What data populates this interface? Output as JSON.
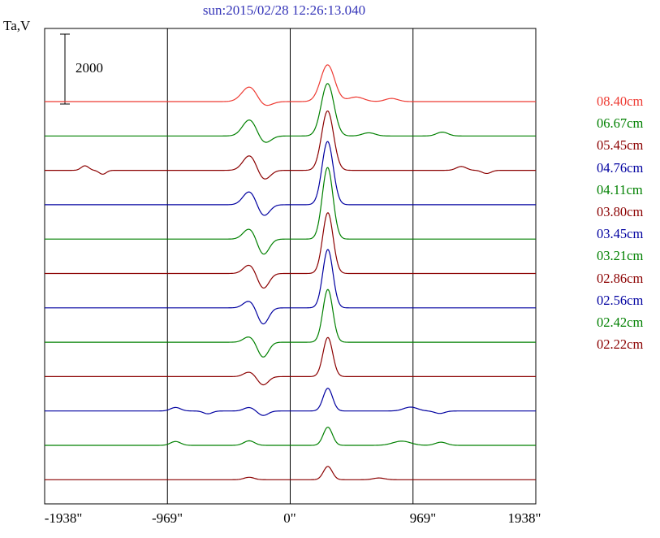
{
  "title": "sun:2015/02/28 12:26:13.040",
  "y_axis_label": "Ta,V",
  "scale_bar": {
    "label": "2000",
    "value": 2000
  },
  "x_ticks": [
    "-1938\"",
    "-969\"",
    "0\"",
    "969\"",
    "1938\""
  ],
  "x_tick_values": [
    -1938,
    -969,
    0,
    969,
    1938
  ],
  "colors": {
    "title_blue": "#3434b8",
    "axis_black": "#000000",
    "trace_red": "#ee3b33",
    "trace_green": "#008000",
    "trace_darkred": "#8b0000",
    "trace_blue": "#0000a0"
  },
  "chart_data": {
    "type": "line",
    "title": "sun:2015/02/28 12:26:13.040",
    "ylabel": "Ta,V",
    "x_unit": "arcsec",
    "xlim": [
      -1938,
      1938
    ],
    "gridlines_x": [
      -969,
      0,
      969
    ],
    "grid": true,
    "legend_position": "right-outside",
    "scale_bar_value": 2000,
    "note": "Stacked solar drift-scan antenna-temperature profiles per wavelength; features are gaussian components {x arcsec, amp in V (scale bar = 2000), w sigma arcsec}",
    "series": [
      {
        "label": "08.40cm",
        "color": "#ee3b33",
        "features": [
          {
            "x": -320,
            "amp": 430,
            "w": 60
          },
          {
            "x": -205,
            "amp": -150,
            "w": 55
          },
          {
            "x": 295,
            "amp": 1050,
            "w": 55
          },
          {
            "x": 520,
            "amp": 130,
            "w": 60
          },
          {
            "x": 800,
            "amp": 90,
            "w": 50
          }
        ]
      },
      {
        "label": "06.67cm",
        "color": "#008000",
        "features": [
          {
            "x": -320,
            "amp": 470,
            "w": 55
          },
          {
            "x": -205,
            "amp": -220,
            "w": 50
          },
          {
            "x": 295,
            "amp": 1500,
            "w": 50
          },
          {
            "x": 620,
            "amp": 90,
            "w": 50
          },
          {
            "x": 1200,
            "amp": 110,
            "w": 45
          }
        ]
      },
      {
        "label": "05.45cm",
        "color": "#8b0000",
        "features": [
          {
            "x": -1620,
            "amp": 130,
            "w": 30
          },
          {
            "x": -1480,
            "amp": -110,
            "w": 28
          },
          {
            "x": -320,
            "amp": 430,
            "w": 52
          },
          {
            "x": -208,
            "amp": -280,
            "w": 48
          },
          {
            "x": 295,
            "amp": 1700,
            "w": 47
          },
          {
            "x": 1350,
            "amp": 110,
            "w": 40
          },
          {
            "x": 1550,
            "amp": -90,
            "w": 35
          }
        ]
      },
      {
        "label": "04.76cm",
        "color": "#0000a0",
        "features": [
          {
            "x": -322,
            "amp": 380,
            "w": 50
          },
          {
            "x": -210,
            "amp": -330,
            "w": 46
          },
          {
            "x": 295,
            "amp": 1810,
            "w": 44
          }
        ]
      },
      {
        "label": "04.11cm",
        "color": "#008000",
        "features": [
          {
            "x": -322,
            "amp": 300,
            "w": 48
          },
          {
            "x": -212,
            "amp": -450,
            "w": 45
          },
          {
            "x": 295,
            "amp": 2050,
            "w": 42
          }
        ]
      },
      {
        "label": "03.80cm",
        "color": "#8b0000",
        "features": [
          {
            "x": -322,
            "amp": 250,
            "w": 46
          },
          {
            "x": -212,
            "amp": -430,
            "w": 44
          },
          {
            "x": 297,
            "amp": 1740,
            "w": 41
          }
        ]
      },
      {
        "label": "03.45cm",
        "color": "#0000a0",
        "features": [
          {
            "x": -324,
            "amp": 200,
            "w": 45
          },
          {
            "x": -214,
            "amp": -470,
            "w": 43
          },
          {
            "x": 297,
            "amp": 1670,
            "w": 40
          }
        ]
      },
      {
        "label": "03.21cm",
        "color": "#008000",
        "features": [
          {
            "x": -324,
            "amp": 160,
            "w": 44
          },
          {
            "x": -214,
            "amp": -430,
            "w": 42
          },
          {
            "x": 297,
            "amp": 1510,
            "w": 39
          }
        ]
      },
      {
        "label": "02.86cm",
        "color": "#8b0000",
        "features": [
          {
            "x": -324,
            "amp": 130,
            "w": 43
          },
          {
            "x": -214,
            "amp": -240,
            "w": 41
          },
          {
            "x": 297,
            "amp": 1120,
            "w": 38
          }
        ]
      },
      {
        "label": "02.56cm",
        "color": "#0000a0",
        "features": [
          {
            "x": -905,
            "amp": 100,
            "w": 40
          },
          {
            "x": -650,
            "amp": -80,
            "w": 35
          },
          {
            "x": -324,
            "amp": 100,
            "w": 42
          },
          {
            "x": -214,
            "amp": -130,
            "w": 40
          },
          {
            "x": 297,
            "amp": 650,
            "w": 37
          },
          {
            "x": 950,
            "amp": 110,
            "w": 55
          },
          {
            "x": 1180,
            "amp": -70,
            "w": 40
          }
        ]
      },
      {
        "label": "02.42cm",
        "color": "#008000",
        "features": [
          {
            "x": -905,
            "amp": 110,
            "w": 40
          },
          {
            "x": -324,
            "amp": 130,
            "w": 42
          },
          {
            "x": 297,
            "amp": 520,
            "w": 36
          },
          {
            "x": 880,
            "amp": 120,
            "w": 70
          },
          {
            "x": 1190,
            "amp": 90,
            "w": 45
          }
        ]
      },
      {
        "label": "02.22cm",
        "color": "#8b0000",
        "features": [
          {
            "x": -324,
            "amp": 70,
            "w": 40
          },
          {
            "x": 297,
            "amp": 380,
            "w": 35
          },
          {
            "x": 700,
            "amp": 50,
            "w": 45
          }
        ]
      }
    ]
  }
}
